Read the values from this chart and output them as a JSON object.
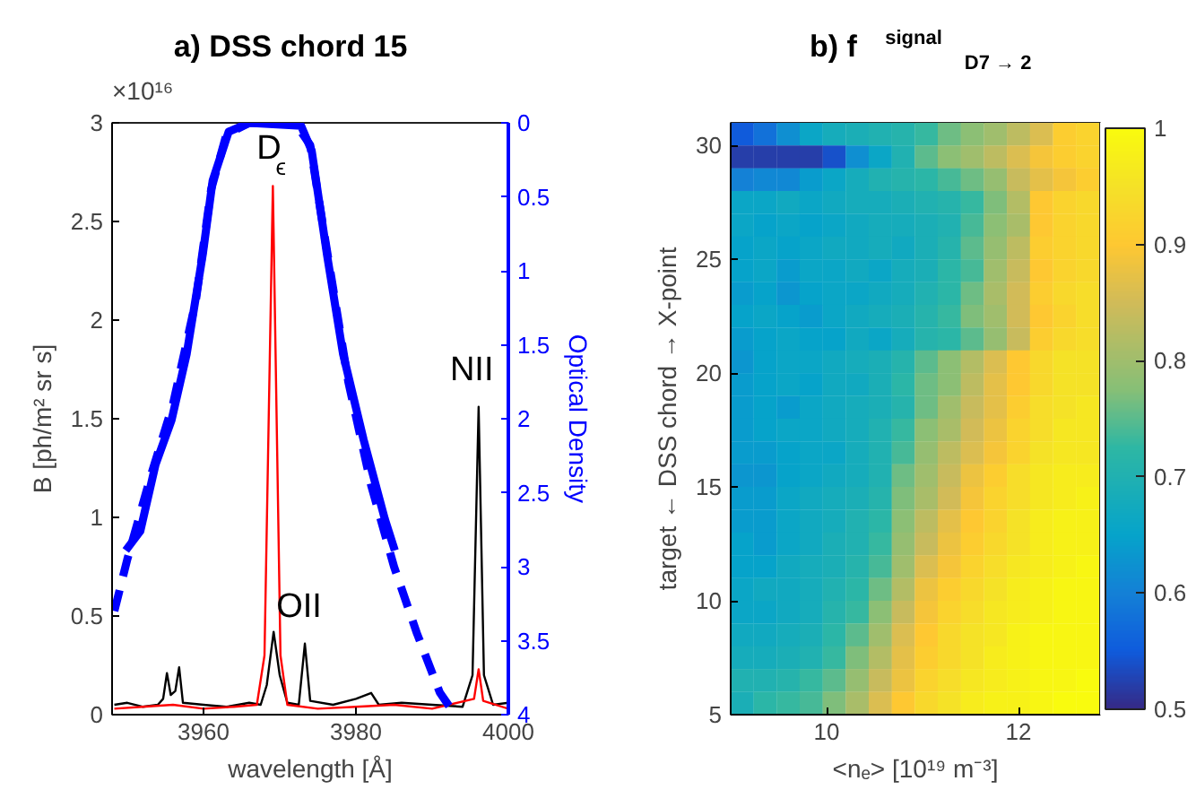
{
  "chart_data": [
    {
      "type": "line",
      "title": "a)  DSS chord 15",
      "xlabel": "wavelength [Å]",
      "ylabel": "B [ph/m² sr s]",
      "y2label": "Optical Density",
      "xlim": [
        3948,
        4000
      ],
      "xticks": [
        3960,
        3980,
        4000
      ],
      "ylim": [
        0,
        3
      ],
      "yticks": [
        0,
        0.5,
        1,
        1.5,
        2,
        2.5,
        3
      ],
      "y2lim": [
        4,
        0
      ],
      "y2ticks": [
        0,
        0.5,
        1,
        1.5,
        2,
        2.5,
        3,
        3.5,
        4
      ],
      "series": [
        {
          "color": "#000000",
          "x": [
            3948.3,
            3950,
            3952,
            3954,
            3954.7,
            3955.2,
            3955.7,
            3956.3,
            3956.8,
            3957.3,
            3960,
            3963,
            3966,
            3967.5,
            3968.3,
            3969.2,
            3970,
            3971,
            3972.5,
            3973.3,
            3974,
            3977,
            3980,
            3982,
            3983,
            3986,
            3990,
            3994,
            3995.3,
            3996.1,
            3996.8,
            3998,
            4000
          ],
          "values": [
            0.05,
            0.06,
            0.04,
            0.05,
            0.08,
            0.21,
            0.1,
            0.12,
            0.24,
            0.06,
            0.05,
            0.04,
            0.06,
            0.05,
            0.15,
            0.42,
            0.2,
            0.06,
            0.05,
            0.36,
            0.07,
            0.05,
            0.08,
            0.11,
            0.05,
            0.06,
            0.05,
            0.04,
            0.2,
            1.56,
            0.2,
            0.05,
            0.06
          ]
        },
        {
          "color": "#ff0000",
          "x": [
            3948.3,
            3952,
            3956,
            3960,
            3964,
            3967,
            3968,
            3969.1,
            3970.1,
            3971,
            3975,
            3980,
            3985,
            3990,
            3995.5,
            3996.1,
            3996.7,
            4000
          ],
          "values": [
            0.03,
            0.04,
            0.05,
            0.03,
            0.04,
            0.05,
            0.3,
            2.68,
            0.3,
            0.05,
            0.03,
            0.04,
            0.05,
            0.03,
            0.08,
            0.23,
            0.07,
            0.03
          ]
        },
        {
          "color": "#0000ff",
          "axis": "y2",
          "line_style": "dashed",
          "x": [
            3948.3,
            3950,
            3953,
            3956,
            3959,
            3961,
            3963,
            3966,
            3972,
            3974,
            3976,
            3979,
            3982,
            3985,
            3988,
            3991,
            3993
          ],
          "values": [
            3.3,
            2.95,
            2.4,
            1.9,
            1.2,
            0.45,
            0.08,
            0,
            0,
            0.15,
            0.8,
            1.75,
            2.45,
            3.0,
            3.45,
            3.85,
            4.0
          ]
        },
        {
          "color": "#0000ff",
          "axis": "y2",
          "line_style": "solid",
          "x": [
            3949.8,
            3951.7,
            3953.7,
            3955.8,
            3957.8,
            3959.9,
            3961.2,
            3963.3,
            3966,
            3972.8,
            3974.2,
            3976.2,
            3978.3,
            3981,
            3983.8,
            3985.1
          ],
          "values": [
            2.89,
            2.76,
            2.31,
            2.01,
            1.56,
            0.89,
            0.39,
            0.06,
            0,
            0.02,
            0.19,
            0.89,
            1.56,
            2.14,
            2.68,
            2.89
          ]
        }
      ],
      "annotations": [
        {
          "text": "D$_{ϵ}$",
          "x": 3969.1,
          "y": 2.68
        },
        {
          "text": "OII",
          "x": 3973.3,
          "y": 0.36
        },
        {
          "text": "NII",
          "x": 3996.1,
          "y": 1.56
        },
        "×10¹⁶"
      ]
    },
    {
      "type": "heatmap",
      "title": "b) f$^{signal}$$_{D7 → 2}$",
      "xlabel": "<nₑ> [10¹⁹ m⁻³]",
      "ylabel": "target ← DSS chord → X-point",
      "xlim": [
        9,
        12.85
      ],
      "xticks": [
        10,
        12
      ],
      "ylim": [
        5,
        31
      ],
      "yticks": [
        5,
        10,
        15,
        20,
        25,
        30
      ],
      "clim": [
        0.5,
        1
      ],
      "cticks": [
        0.5,
        0.6,
        0.7,
        0.8,
        0.9,
        1
      ],
      "x": [
        9.12,
        9.36,
        9.6,
        9.84,
        10.08,
        10.32,
        10.56,
        10.8,
        11.04,
        11.28,
        11.52,
        11.76,
        12.0,
        12.24,
        12.48,
        12.72
      ],
      "y": [
        30.5,
        29.5,
        28.5,
        27.5,
        26.5,
        25.5,
        24.5,
        23.5,
        22.5,
        21.5,
        20.5,
        19.5,
        18.5,
        17.5,
        16.5,
        15.5,
        14.5,
        13.5,
        12.5,
        11.5,
        10.5,
        9.5,
        8.5,
        7.5,
        6.5,
        5.5
      ],
      "cells": [
        [
          0.55,
          0.58,
          0.62,
          0.66,
          0.68,
          0.69,
          0.7,
          0.71,
          0.73,
          0.76,
          0.78,
          0.8,
          0.83,
          0.86,
          0.91,
          0.92
        ],
        [
          0.52,
          0.52,
          0.52,
          0.52,
          0.54,
          0.62,
          0.66,
          0.7,
          0.75,
          0.78,
          0.8,
          0.83,
          0.86,
          0.89,
          0.91,
          0.92
        ],
        [
          0.6,
          0.61,
          0.61,
          0.64,
          0.66,
          0.68,
          0.7,
          0.71,
          0.72,
          0.74,
          0.76,
          0.79,
          0.84,
          0.87,
          0.89,
          0.91
        ],
        [
          0.66,
          0.66,
          0.67,
          0.66,
          0.67,
          0.68,
          0.68,
          0.69,
          0.7,
          0.71,
          0.73,
          0.77,
          0.82,
          0.9,
          0.92,
          0.93
        ],
        [
          0.66,
          0.65,
          0.66,
          0.65,
          0.66,
          0.67,
          0.68,
          0.68,
          0.69,
          0.7,
          0.74,
          0.78,
          0.81,
          0.9,
          0.92,
          0.93
        ],
        [
          0.65,
          0.66,
          0.65,
          0.66,
          0.67,
          0.67,
          0.68,
          0.67,
          0.69,
          0.71,
          0.75,
          0.79,
          0.83,
          0.91,
          0.92,
          0.93
        ],
        [
          0.65,
          0.66,
          0.64,
          0.66,
          0.66,
          0.67,
          0.66,
          0.68,
          0.69,
          0.72,
          0.74,
          0.8,
          0.84,
          0.9,
          0.92,
          0.93
        ],
        [
          0.64,
          0.65,
          0.63,
          0.65,
          0.66,
          0.66,
          0.67,
          0.68,
          0.7,
          0.72,
          0.76,
          0.81,
          0.85,
          0.91,
          0.93,
          0.94
        ],
        [
          0.65,
          0.66,
          0.65,
          0.64,
          0.66,
          0.67,
          0.68,
          0.69,
          0.71,
          0.73,
          0.77,
          0.8,
          0.85,
          0.9,
          0.92,
          0.94
        ],
        [
          0.64,
          0.65,
          0.66,
          0.65,
          0.65,
          0.67,
          0.66,
          0.68,
          0.71,
          0.72,
          0.75,
          0.79,
          0.84,
          0.91,
          0.93,
          0.94
        ],
        [
          0.63,
          0.65,
          0.66,
          0.66,
          0.67,
          0.68,
          0.69,
          0.71,
          0.75,
          0.78,
          0.82,
          0.86,
          0.9,
          0.93,
          0.95,
          0.95
        ],
        [
          0.64,
          0.65,
          0.66,
          0.65,
          0.67,
          0.67,
          0.69,
          0.72,
          0.76,
          0.78,
          0.83,
          0.87,
          0.9,
          0.93,
          0.95,
          0.95
        ],
        [
          0.64,
          0.65,
          0.64,
          0.66,
          0.67,
          0.68,
          0.69,
          0.71,
          0.76,
          0.8,
          0.84,
          0.87,
          0.91,
          0.94,
          0.95,
          0.96
        ],
        [
          0.64,
          0.65,
          0.66,
          0.66,
          0.67,
          0.68,
          0.7,
          0.73,
          0.78,
          0.81,
          0.85,
          0.88,
          0.92,
          0.94,
          0.96,
          0.96
        ],
        [
          0.64,
          0.64,
          0.65,
          0.66,
          0.66,
          0.68,
          0.7,
          0.74,
          0.79,
          0.83,
          0.86,
          0.89,
          0.92,
          0.95,
          0.96,
          0.96
        ],
        [
          0.63,
          0.63,
          0.65,
          0.66,
          0.67,
          0.68,
          0.7,
          0.76,
          0.8,
          0.84,
          0.88,
          0.91,
          0.94,
          0.96,
          0.97,
          0.97
        ],
        [
          0.64,
          0.64,
          0.66,
          0.67,
          0.68,
          0.69,
          0.71,
          0.77,
          0.81,
          0.85,
          0.89,
          0.92,
          0.94,
          0.96,
          0.97,
          0.98
        ],
        [
          0.64,
          0.64,
          0.66,
          0.67,
          0.68,
          0.7,
          0.72,
          0.78,
          0.83,
          0.87,
          0.9,
          0.92,
          0.95,
          0.97,
          0.98,
          0.98
        ],
        [
          0.65,
          0.64,
          0.66,
          0.67,
          0.69,
          0.7,
          0.73,
          0.79,
          0.84,
          0.88,
          0.91,
          0.93,
          0.95,
          0.97,
          0.98,
          0.98
        ],
        [
          0.65,
          0.65,
          0.67,
          0.68,
          0.69,
          0.71,
          0.74,
          0.8,
          0.86,
          0.89,
          0.92,
          0.94,
          0.96,
          0.97,
          0.98,
          0.99
        ],
        [
          0.66,
          0.67,
          0.67,
          0.68,
          0.7,
          0.72,
          0.76,
          0.82,
          0.88,
          0.91,
          0.93,
          0.95,
          0.97,
          0.98,
          0.99,
          0.99
        ],
        [
          0.66,
          0.66,
          0.67,
          0.68,
          0.71,
          0.73,
          0.78,
          0.84,
          0.89,
          0.92,
          0.94,
          0.96,
          0.97,
          0.98,
          0.99,
          0.99
        ],
        [
          0.67,
          0.67,
          0.68,
          0.69,
          0.72,
          0.75,
          0.8,
          0.86,
          0.9,
          0.93,
          0.95,
          0.96,
          0.98,
          0.99,
          0.99,
          0.99
        ],
        [
          0.68,
          0.68,
          0.69,
          0.7,
          0.73,
          0.77,
          0.82,
          0.87,
          0.91,
          0.93,
          0.95,
          0.97,
          0.98,
          0.99,
          0.99,
          0.99
        ],
        [
          0.7,
          0.7,
          0.71,
          0.73,
          0.75,
          0.79,
          0.84,
          0.88,
          0.92,
          0.94,
          0.96,
          0.97,
          0.98,
          0.99,
          0.99,
          1.0
        ],
        [
          0.69,
          0.72,
          0.73,
          0.74,
          0.77,
          0.81,
          0.86,
          0.9,
          0.93,
          0.95,
          0.97,
          0.98,
          0.98,
          0.99,
          1.0,
          1.0
        ]
      ]
    }
  ]
}
